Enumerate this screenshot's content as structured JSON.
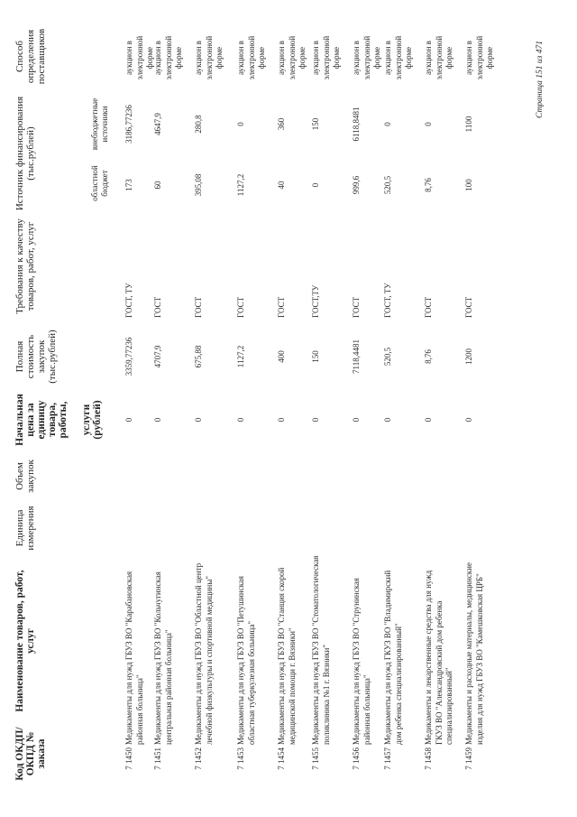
{
  "headers": {
    "code": "Код ОКДП/ ОКПД № заказа",
    "name": "Наименование товаров, работ, услуг",
    "unit": "Единица измерения",
    "volume": "Объем закупок",
    "unit_price": "Начальная цена за единицу товара, работы,",
    "unit_price_2": "услуги (рублей)",
    "total": "Полная стоимость закупок (тыс.рублей)",
    "requirements": "Требования к качеству товаров, работ, услуг",
    "funding": "Источник финансирования (тыс.рублей)",
    "funding_regional": "областной бюджет",
    "funding_extra": "внебюджетные источники",
    "method": "Способ определения поставщиков"
  },
  "rows": [
    {
      "code": "7 1450",
      "name": "Медикаменты для нужд ГБУЗ ВО \"Карабановская районная больница\"",
      "price": "0",
      "total": "3359,77236",
      "req": "ГОСТ, ТУ",
      "regional": "173",
      "extra": "3186,77236",
      "method": "аукцион в электронной форме"
    },
    {
      "code": "7 1451",
      "name": "Медикаменты для нужд ГБУЗ ВО \"Кольчугинская центральная районная больница\"",
      "price": "0",
      "total": "4707,9",
      "req": "ГОСТ",
      "regional": "60",
      "extra": "4647,9",
      "method": "аукцион в электронной форме"
    },
    {
      "code": "7 1452",
      "name": "Медикаменты для нужд ГБУЗ ВО \"Областной центр лечебной физкультуры и спортивной медицины\"",
      "price": "0",
      "total": "675,88",
      "req": "ГОСТ",
      "regional": "395,08",
      "extra": "280,8",
      "method": "аукцион в электронной форме"
    },
    {
      "code": "7 1453",
      "name": "Медикаменты для нужд ГБУЗ ВО \"Петушинская областная туберкулезная больница\"",
      "price": "0",
      "total": "1127,2",
      "req": "ГОСТ",
      "regional": "1127,2",
      "extra": "0",
      "method": "аукцион в электронной форме"
    },
    {
      "code": "7 1454",
      "name": "Медикаменты для нужд ГБУЗ ВО \"Станция скорой медицинской помощи г. Вязники\"",
      "price": "0",
      "total": "400",
      "req": "ГОСТ",
      "regional": "40",
      "extra": "360",
      "method": "аукцион в электронной форме"
    },
    {
      "code": "7 1455",
      "name": "Медикаменты для нужд ГБУЗ ВО \"Стоматологическая поликлиника №1 г. Вязники\"",
      "price": "0",
      "total": "150",
      "req": "ГОСТ,ТУ",
      "regional": "0",
      "extra": "150",
      "method": "аукцион в электронной форме"
    },
    {
      "code": "7 1456",
      "name": "Медикаменты для нужд ГБУЗ ВО \"Струнинская районная больница\"",
      "price": "0",
      "total": "7118,4481",
      "req": "ГОСТ",
      "regional": "999,6",
      "extra": "6118,8481",
      "method": "аукцион в электронной форме"
    },
    {
      "code": "7 1457",
      "name": "Медикаменты для нужд ГКУЗ ВО \"Владимирский дом ребенка специализированный\"",
      "price": "0",
      "total": "520,5",
      "req": "ГОСТ, ТУ",
      "regional": "520,5",
      "extra": "0",
      "method": "аукцион в электронной форме"
    },
    {
      "code": "7 1458",
      "name": "Медикаменты и лекарственные средства для нужд ГКУЗ ВО \"Александровский дом ребенка специализированный\"",
      "price": "0",
      "total": "8,76",
      "req": "ГОСТ",
      "regional": "8,76",
      "extra": "0",
      "method": "аукцион в электронной форме"
    },
    {
      "code": "7 1459",
      "name": "Медикаменты и расходные материалы, медицинские изделия для нужд ГБУЗ ВО \"Камешковская ЦРБ\"",
      "price": "0",
      "total": "1200",
      "req": "ГОСТ",
      "regional": "100",
      "extra": "1100",
      "method": "аукцион в электронной форме"
    }
  ],
  "footer": {
    "page": "Страница 151 из 471"
  }
}
